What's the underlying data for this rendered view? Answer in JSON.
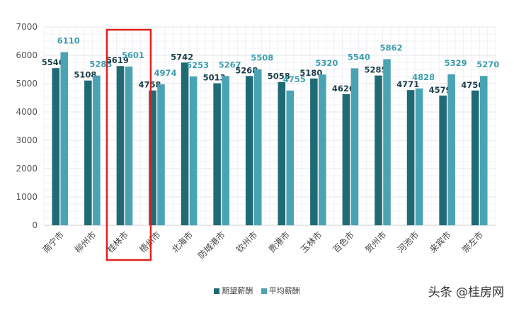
{
  "chart_data": {
    "type": "bar",
    "categories": [
      "南宁市",
      "柳州市",
      "桂林市",
      "梧州市",
      "北海市",
      "防城港市",
      "钦州市",
      "贵港市",
      "玉林市",
      "百色市",
      "贺州市",
      "河池市",
      "来宾市",
      "崇左市"
    ],
    "series": [
      {
        "name": "期望薪酬",
        "color": "#1f6b75",
        "values": [
          5546,
          5108,
          5619,
          4758,
          5742,
          5013,
          5268,
          5058,
          5180,
          4626,
          5285,
          4771,
          4579,
          4756
        ]
      },
      {
        "name": "平均薪酬",
        "color": "#4aa3b3",
        "values": [
          6110,
          5283,
          5601,
          4974,
          5253,
          5267,
          5508,
          4755,
          5320,
          5540,
          5862,
          4828,
          5329,
          5270
        ]
      }
    ],
    "ylim": [
      0,
      7000
    ],
    "yticks": [
      "0",
      "1000",
      "2000",
      "3000",
      "4000",
      "5000",
      "6000",
      "7000"
    ],
    "highlight_category": "桂林市",
    "highlight_color": "#e02020",
    "grid": true,
    "legend_position": "bottom"
  },
  "watermark": "头条 @桂房网"
}
